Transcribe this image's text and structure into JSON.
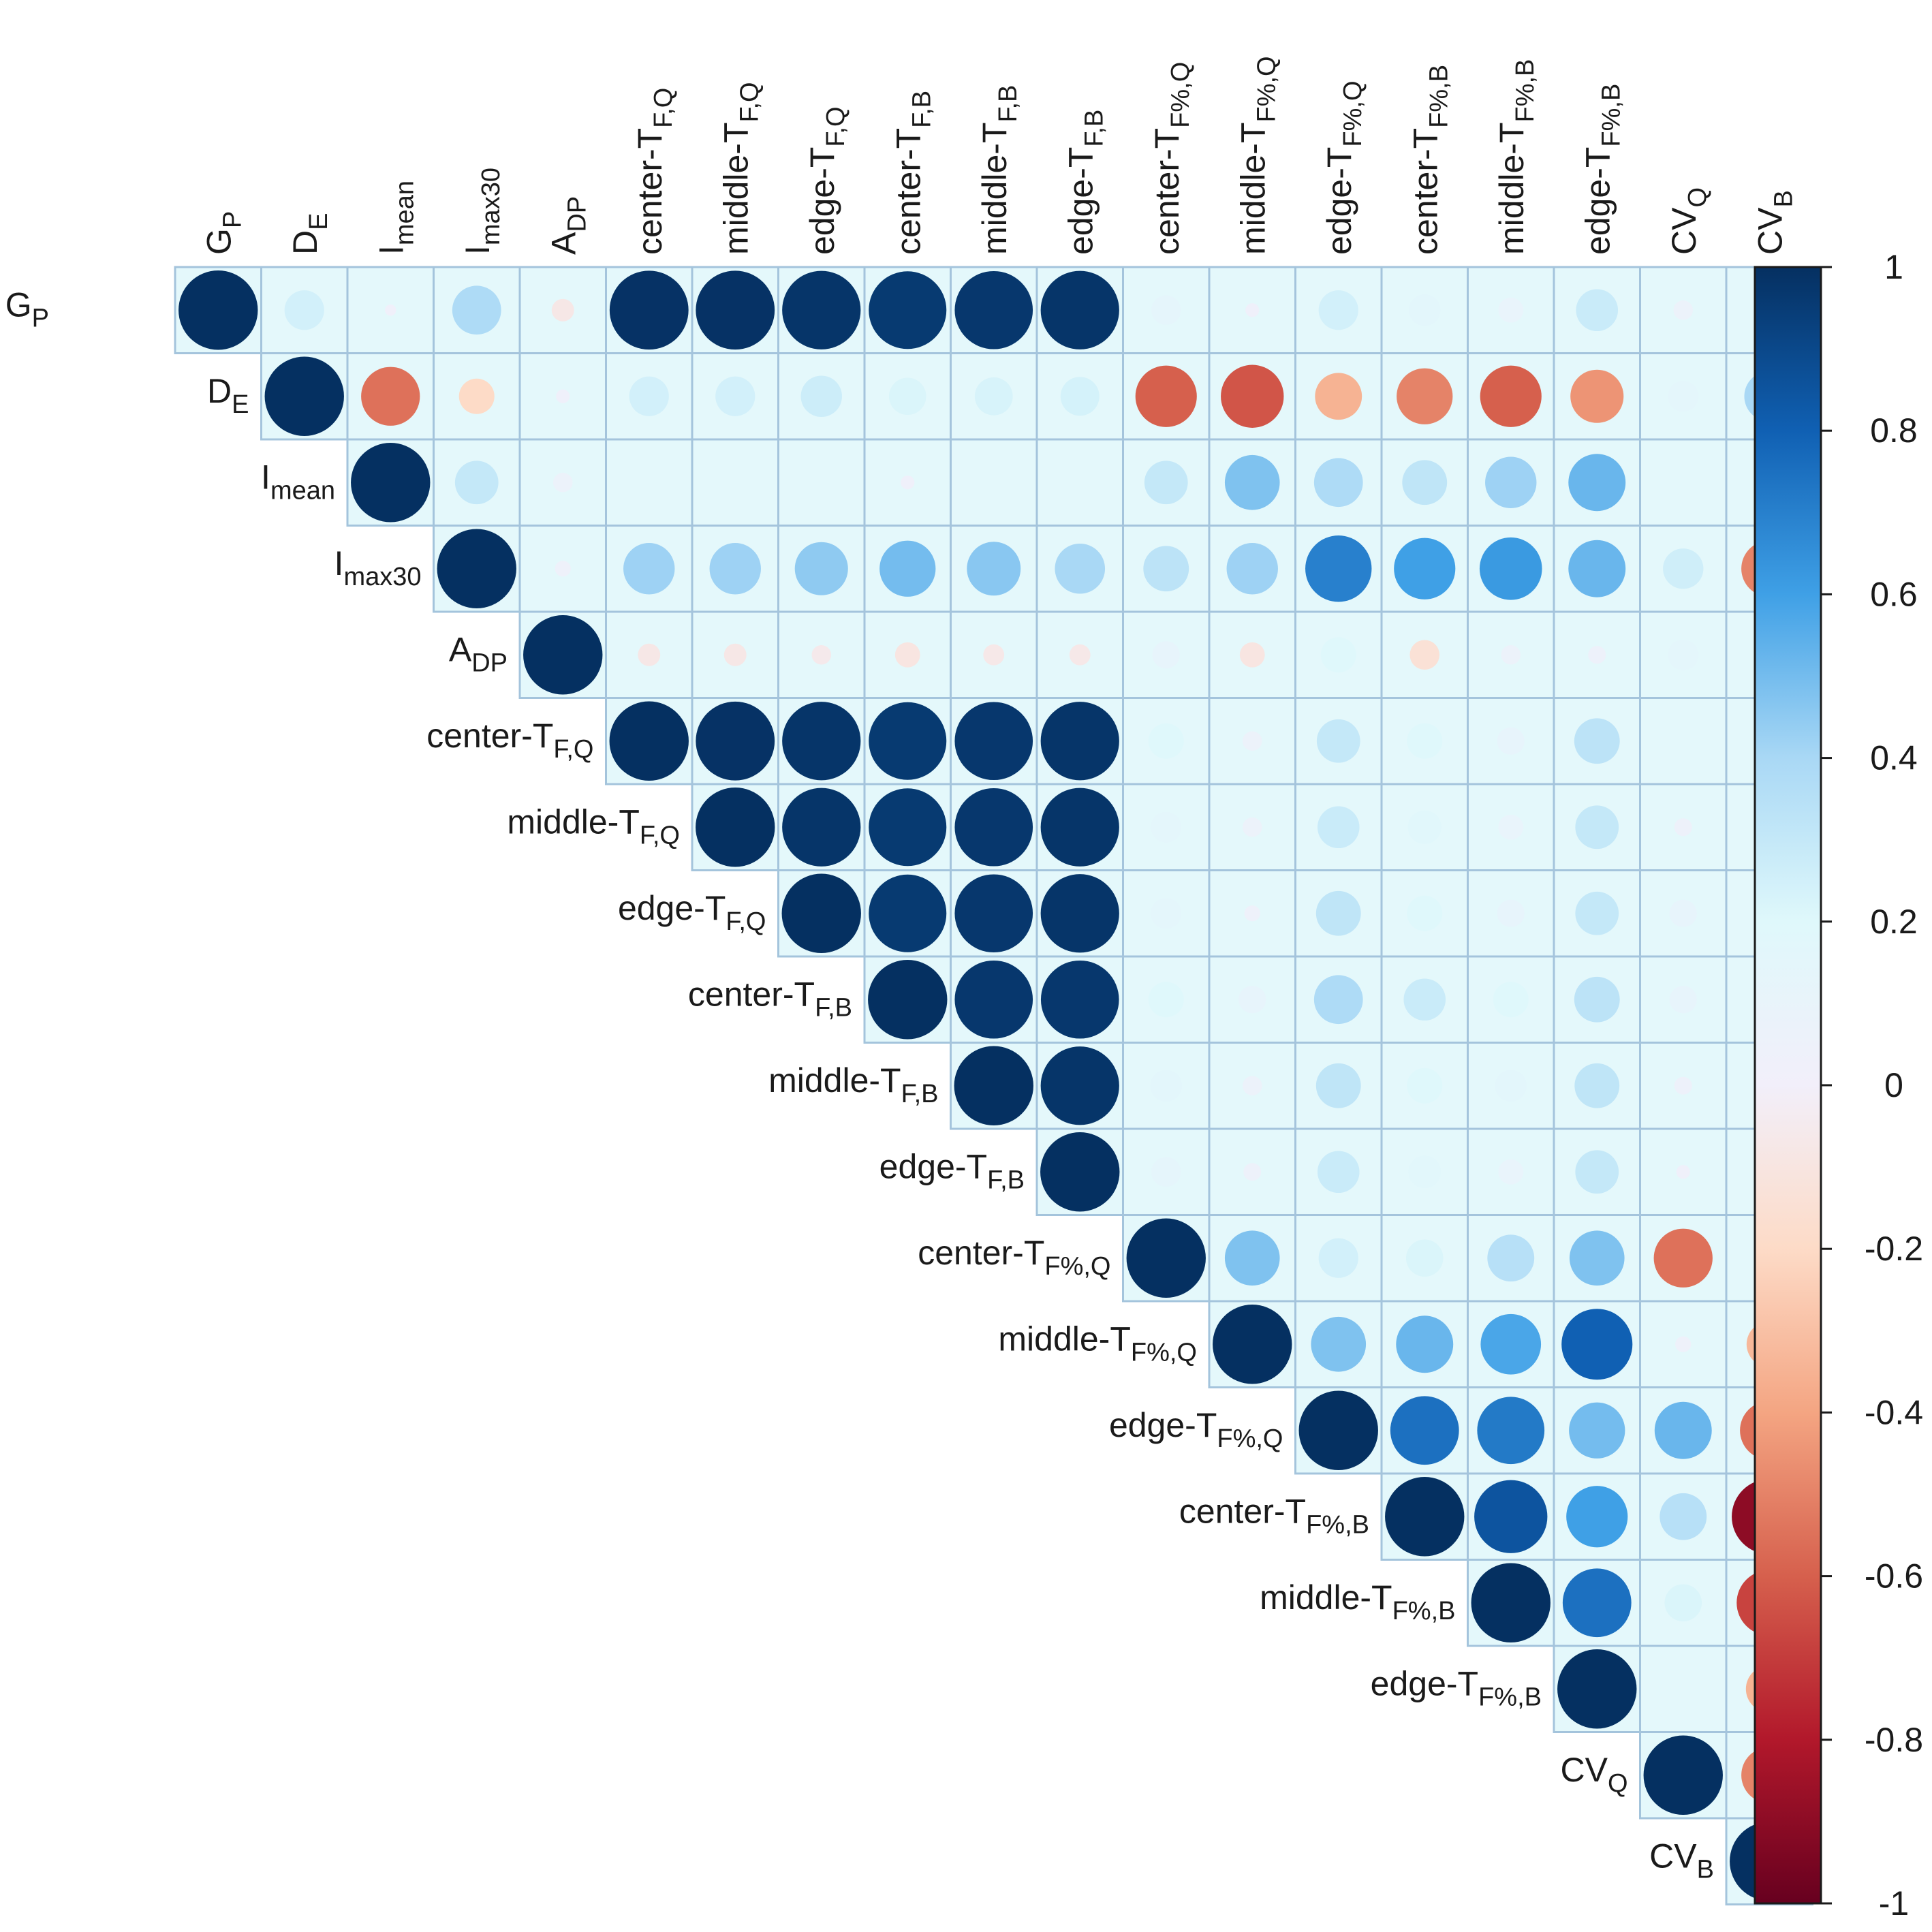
{
  "chart_data": {
    "type": "heatmap",
    "variables": [
      {
        "main": "G",
        "sub": "P"
      },
      {
        "main": "D",
        "sub": "E"
      },
      {
        "main": "I",
        "sub": "mean"
      },
      {
        "main": "I",
        "sub": "max30"
      },
      {
        "main": "A",
        "sub": "DP"
      },
      {
        "main": "center-T",
        "sub": "F,Q"
      },
      {
        "main": "middle-T",
        "sub": "F,Q"
      },
      {
        "main": "edge-T",
        "sub": "F,Q"
      },
      {
        "main": "center-T",
        "sub": "F,B"
      },
      {
        "main": "middle-T",
        "sub": "F,B"
      },
      {
        "main": "edge-T",
        "sub": "F,B"
      },
      {
        "main": "center-T",
        "sub": "F%,Q"
      },
      {
        "main": "middle-T",
        "sub": "F%,Q"
      },
      {
        "main": "edge-T",
        "sub": "F%,Q"
      },
      {
        "main": "center-T",
        "sub": "F%,B"
      },
      {
        "main": "middle-T",
        "sub": "F%,B"
      },
      {
        "main": "edge-T",
        "sub": "F%,B"
      },
      {
        "main": "CV",
        "sub": "Q"
      },
      {
        "main": "CV",
        "sub": "B"
      }
    ],
    "matrix": [
      [
        1,
        0.25,
        0.02,
        0.38,
        -0.08,
        0.99,
        0.99,
        0.98,
        0.96,
        0.97,
        0.98,
        0.14,
        0.03,
        0.25,
        0.16,
        0.1,
        0.28,
        0.06,
        0.03
      ],
      [
        0.25,
        1,
        -0.55,
        -0.2,
        0.03,
        0.25,
        0.25,
        0.27,
        0.22,
        0.23,
        0.24,
        -0.6,
        -0.63,
        -0.35,
        -0.5,
        -0.6,
        -0.45,
        0.15,
        0.4
      ],
      [
        0.02,
        -0.55,
        1,
        0.3,
        0.06,
        0.0,
        0.0,
        0.0,
        0.03,
        0.0,
        0.0,
        0.3,
        0.48,
        0.38,
        0.32,
        0.42,
        0.52,
        0.0,
        -0.12
      ],
      [
        0.38,
        -0.2,
        0.3,
        1,
        0.04,
        0.42,
        0.42,
        0.45,
        0.5,
        0.46,
        0.4,
        0.33,
        0.42,
        0.7,
        0.6,
        0.62,
        0.52,
        0.26,
        -0.5
      ],
      [
        -0.08,
        0.03,
        0.06,
        0.04,
        1,
        -0.08,
        -0.08,
        -0.06,
        -0.1,
        -0.07,
        -0.07,
        0.12,
        -0.1,
        0.2,
        -0.14,
        0.06,
        0.05,
        0.15,
        0.1
      ],
      [
        0.99,
        0.25,
        0.0,
        0.42,
        -0.08,
        1,
        0.99,
        0.98,
        0.96,
        0.97,
        0.98,
        0.2,
        0.06,
        0.3,
        0.2,
        0.12,
        0.33,
        0.0,
        0.0
      ],
      [
        0.99,
        0.25,
        0.0,
        0.42,
        -0.08,
        0.99,
        1,
        0.98,
        0.96,
        0.97,
        0.98,
        0.15,
        0.06,
        0.28,
        0.18,
        0.1,
        0.3,
        0.05,
        0.0
      ],
      [
        0.98,
        0.27,
        0.0,
        0.45,
        -0.06,
        0.98,
        0.98,
        1,
        0.96,
        0.97,
        0.98,
        0.15,
        0.04,
        0.32,
        0.2,
        0.12,
        0.3,
        0.12,
        -0.05
      ],
      [
        0.96,
        0.22,
        0.03,
        0.5,
        -0.1,
        0.96,
        0.96,
        0.96,
        1,
        0.97,
        0.97,
        0.2,
        0.12,
        0.38,
        0.28,
        0.2,
        0.33,
        0.12,
        -0.15
      ],
      [
        0.97,
        0.23,
        0.0,
        0.46,
        -0.07,
        0.97,
        0.97,
        0.97,
        0.97,
        1,
        0.98,
        0.16,
        0.06,
        0.32,
        0.2,
        0.16,
        0.32,
        0.05,
        -0.06
      ],
      [
        0.98,
        0.24,
        0.0,
        0.4,
        -0.07,
        0.98,
        0.98,
        0.98,
        0.97,
        0.98,
        1,
        0.14,
        0.05,
        0.28,
        0.17,
        0.1,
        0.3,
        0.03,
        0.0
      ],
      [
        0.14,
        -0.6,
        0.3,
        0.33,
        0.12,
        0.2,
        0.15,
        0.15,
        0.2,
        0.16,
        0.14,
        1,
        0.48,
        0.25,
        0.22,
        0.35,
        0.48,
        -0.55,
        -0.04
      ],
      [
        0.03,
        -0.63,
        0.48,
        0.42,
        -0.1,
        0.06,
        0.06,
        0.04,
        0.12,
        0.06,
        0.05,
        0.48,
        1,
        0.48,
        0.52,
        0.58,
        0.8,
        0.04,
        -0.33
      ],
      [
        0.25,
        -0.35,
        0.38,
        0.7,
        0.2,
        0.3,
        0.28,
        0.32,
        0.38,
        0.32,
        0.28,
        0.25,
        0.48,
        1,
        0.75,
        0.72,
        0.5,
        0.52,
        -0.55
      ],
      [
        0.16,
        -0.5,
        0.32,
        0.6,
        -0.14,
        0.2,
        0.18,
        0.2,
        0.28,
        0.2,
        0.17,
        0.22,
        0.52,
        0.75,
        1,
        0.85,
        0.6,
        0.35,
        -0.9
      ],
      [
        0.1,
        -0.6,
        0.42,
        0.62,
        0.06,
        0.12,
        0.1,
        0.12,
        0.2,
        0.16,
        0.1,
        0.35,
        0.58,
        0.72,
        0.85,
        1,
        0.75,
        0.22,
        -0.68
      ],
      [
        0.28,
        -0.45,
        0.52,
        0.52,
        0.05,
        0.33,
        0.3,
        0.3,
        0.33,
        0.32,
        0.3,
        0.48,
        0.8,
        0.5,
        0.6,
        0.75,
        1,
        0.0,
        -0.35
      ],
      [
        0.06,
        0.15,
        0.0,
        0.26,
        0.15,
        0.0,
        0.05,
        0.12,
        0.12,
        0.05,
        0.03,
        -0.55,
        0.04,
        0.52,
        0.35,
        0.22,
        0.0,
        1,
        -0.5
      ],
      [
        0.03,
        0.4,
        -0.12,
        -0.5,
        0.1,
        0.0,
        0.0,
        -0.05,
        -0.15,
        -0.06,
        0.0,
        -0.04,
        -0.33,
        -0.55,
        -0.9,
        -0.68,
        -0.35,
        -0.5,
        1
      ]
    ],
    "color_scale": {
      "type": "diverging",
      "range": [
        -1,
        1
      ],
      "ticks": [
        "1",
        "0.8",
        "0.6",
        "0.4",
        "0.2",
        "0",
        "-0.2",
        "-0.4",
        "-0.6",
        "-0.8",
        "-1"
      ],
      "stops": [
        "#67001f",
        "#b2182b",
        "#d6604d",
        "#f4a582",
        "#fddbc7",
        "#f2effa",
        "#dff8fb",
        "#a9d8f5",
        "#3fa0e6",
        "#1060b3",
        "#053061"
      ]
    },
    "layout": "upper-triangular",
    "cell_background": "#e4f8fb",
    "cell_border": "#a4c4dc"
  }
}
